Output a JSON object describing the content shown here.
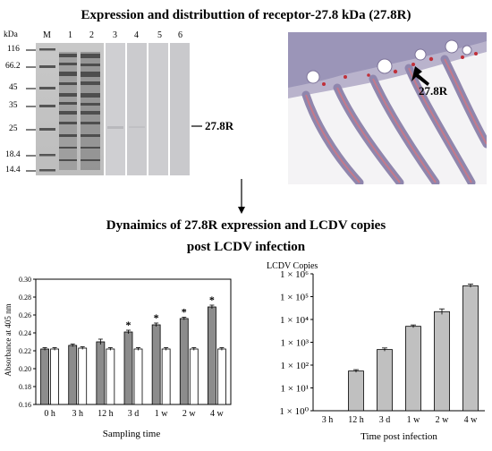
{
  "title_top": "Expression and distributtion of receptor-27.8 kDa (27.8R)",
  "title_mid_line1": "Dynaimics of 27.8R expression and LCDV copies",
  "title_mid_line2": "post LCDV infection",
  "gel": {
    "unit_label": "kDa",
    "markers": [
      "116",
      "66.2",
      "45",
      "35",
      "25",
      "18.4",
      "14.4"
    ],
    "lanes": [
      "M",
      "1",
      "2",
      "3",
      "4",
      "5",
      "6"
    ],
    "band_label": "27.8R"
  },
  "histology": {
    "arrow_label": "27.8R"
  },
  "chart_data": [
    {
      "type": "bar",
      "categories": [
        "0 h",
        "3 h",
        "12 h",
        "3 d",
        "1 w",
        "2 w",
        "4 w"
      ],
      "series": [
        {
          "values": [
            0.222,
            0.226,
            0.23,
            0.241,
            0.249,
            0.256,
            0.269
          ],
          "errors": [
            0.0015,
            0.0015,
            0.003,
            0.002,
            0.002,
            0.0015,
            0.002
          ],
          "color": "#8c8c8c"
        },
        {
          "values": [
            0.222,
            0.223,
            0.222,
            0.222,
            0.222,
            0.222,
            0.222
          ],
          "errors": [
            0.0015,
            0.0015,
            0.0015,
            0.0015,
            0.0015,
            0.0015,
            0.0015
          ],
          "color": "#ffffff"
        }
      ],
      "significance": [
        "",
        "",
        "",
        "*",
        "*",
        "*",
        "*"
      ],
      "ylim": [
        0.16,
        0.3
      ],
      "yticks": [
        "0.16",
        "0.18",
        "0.20",
        "0.22",
        "0.24",
        "0.26",
        "0.28",
        "0.30"
      ],
      "ylabel": "Absorbance at 405 nm",
      "xlabel": "Sampling time"
    },
    {
      "type": "bar",
      "categories": [
        "3 h",
        "12 h",
        "3 d",
        "1 w",
        "2 w",
        "4 w"
      ],
      "values": [
        0,
        55,
        480,
        5000,
        22000,
        300000
      ],
      "log_errors": [
        0,
        0.06,
        0.07,
        0.06,
        0.12,
        0.07
      ],
      "scale": "log",
      "ylim": [
        1,
        1000000
      ],
      "yticks": [
        "1 × 10⁰",
        "1 × 10¹",
        "1 × 10²",
        "1 × 10³",
        "1 × 10⁴",
        "1 × 10⁵",
        "1 × 10⁶"
      ],
      "title": "LCDV Copies",
      "xlabel": "Time post infection",
      "bar_color": "#c0c0c0"
    }
  ]
}
